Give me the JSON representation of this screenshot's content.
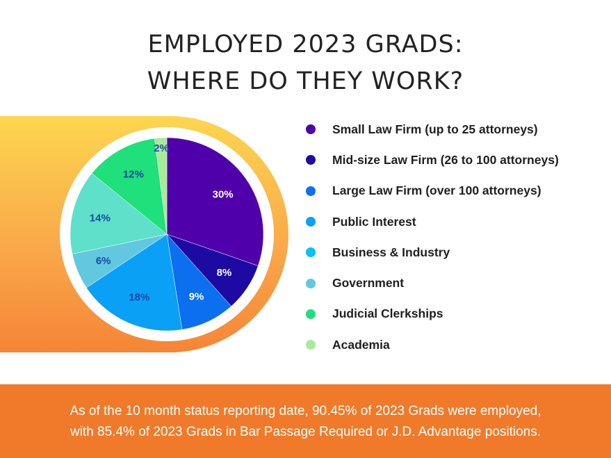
{
  "title_lines": [
    "EMPLOYED 2023 GRADS:",
    "WHERE DO THEY WORK?"
  ],
  "chart_data": {
    "type": "pie",
    "title": "EMPLOYED 2023 GRADS: WHERE DO THEY WORK?",
    "unit": "%",
    "legend_position": "right",
    "slices": [
      {
        "label": "Small Law Firm (up to 25 attorneys)",
        "value": 30,
        "value_label": "30%",
        "color": "#4f00ab"
      },
      {
        "label": "Mid-size Law Firm (26 to 100 attorneys)",
        "value": 8,
        "value_label": "8%",
        "color": "#1d0aa3"
      },
      {
        "label": "Large Law Firm (over 100 attorneys)",
        "value": 9,
        "value_label": "9%",
        "color": "#0b6ff0"
      },
      {
        "label": "Public Interest",
        "value": 18,
        "value_label": "18%",
        "color": "#0aa0f5"
      },
      {
        "label": "Business & Industry",
        "value": 0,
        "value_label": "",
        "color": "#0ac0f5"
      },
      {
        "label": "Government",
        "value": 6,
        "value_label": "6%",
        "color": "#62c8df"
      },
      {
        "label": "",
        "value": 14,
        "value_label": "14%",
        "color": "#5ee0cb"
      },
      {
        "label": "Judicial Clerkships",
        "value": 12,
        "value_label": "12%",
        "color": "#1fe07a"
      },
      {
        "label": "Academia",
        "value": 2,
        "value_label": "2%",
        "color": "#a8ea9a"
      }
    ],
    "legend": [
      {
        "label": "Small Law Firm (up to 25 attorneys)",
        "color": "#4f00ab"
      },
      {
        "label": "Mid-size Law Firm (26 to 100 attorneys)",
        "color": "#1d0aa3"
      },
      {
        "label": "Large Law Firm (over 100 attorneys)",
        "color": "#0b6ff0"
      },
      {
        "label": "Public Interest",
        "color": "#0aa0f5"
      },
      {
        "label": "Business & Industry",
        "color": "#0ac0f5"
      },
      {
        "label": "Government",
        "color": "#62c8df"
      },
      {
        "label": "Judicial Clerkships",
        "color": "#1fe07a"
      },
      {
        "label": "Academia",
        "color": "#a8ea9a"
      }
    ]
  },
  "footer_lines": [
    "As of the 10 month status reporting date, 90.45% of 2023 Grads were employed,",
    "with 85.4% of 2023 Grads in Bar Passage Required or J.D. Advantage positions."
  ],
  "colors": {
    "footer_bg": "#f07a2a",
    "glow_top": "#fdd64f",
    "glow_bottom": "#f58536",
    "pie_label": "#1747a6"
  }
}
